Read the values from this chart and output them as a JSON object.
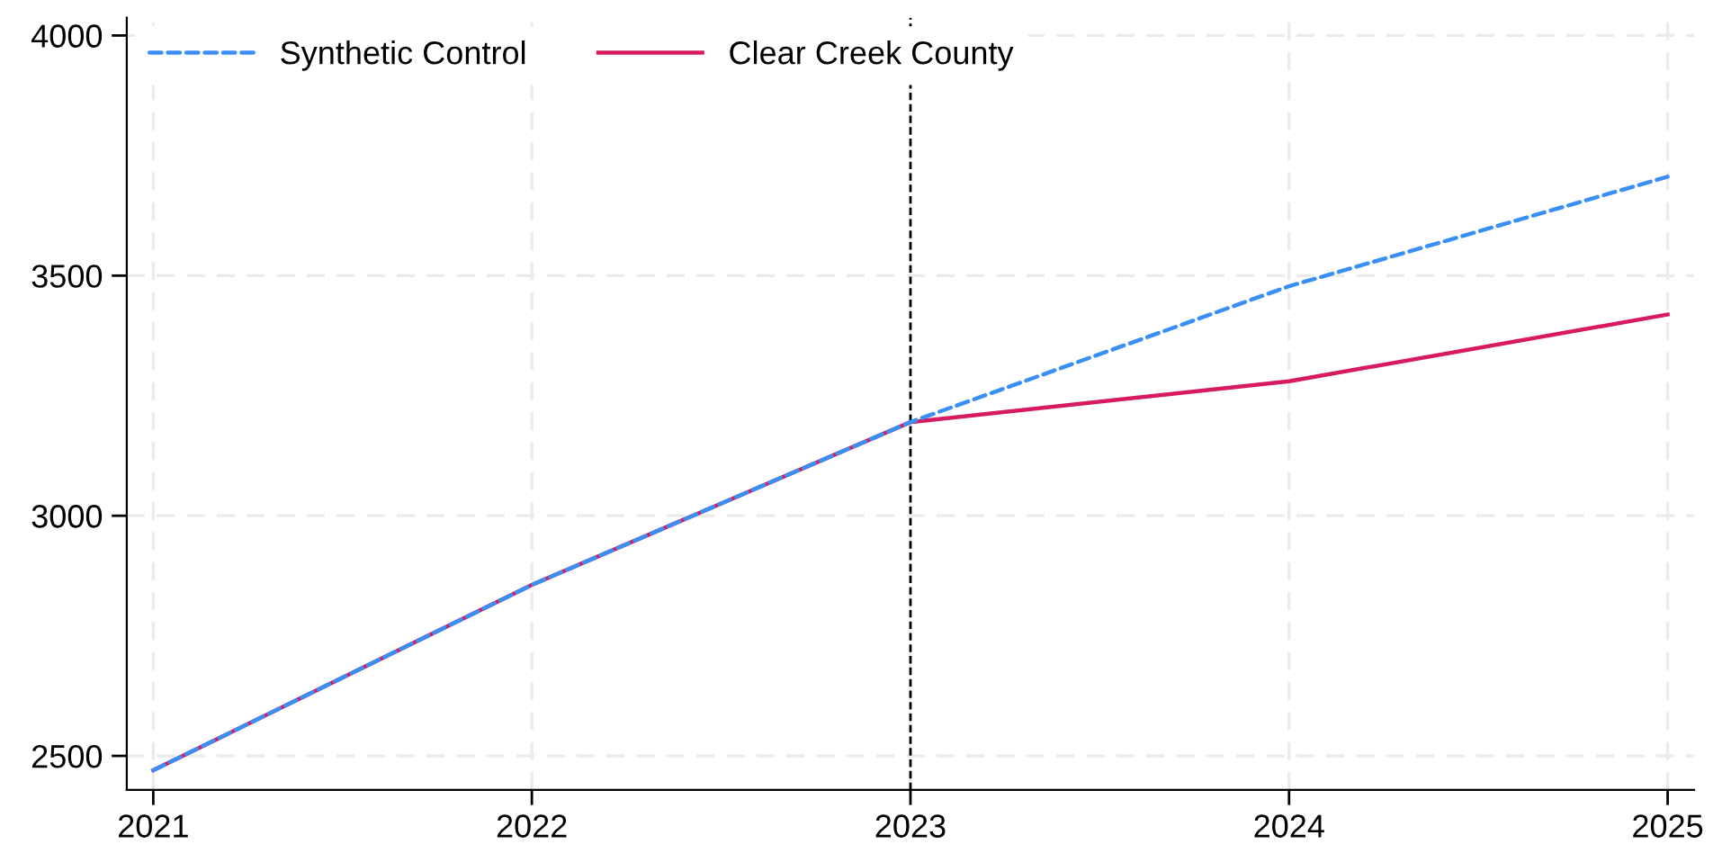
{
  "chart_data": {
    "type": "line",
    "x": [
      2021,
      2022,
      2023,
      2024,
      2025
    ],
    "series": [
      {
        "name": "Synthetic Control",
        "color": "#3a8ff5",
        "line_style": "dashed",
        "values": [
          2470,
          2856,
          3195,
          3478,
          3706
        ]
      },
      {
        "name": "Clear Creek County",
        "color": "#d81b60",
        "line_style": "solid",
        "values": [
          2470,
          2856,
          3195,
          3280,
          3419
        ]
      }
    ],
    "xlim": [
      2020.93,
      2025.07
    ],
    "xticks": [
      2021,
      2022,
      2023,
      2024,
      2025
    ],
    "ylim": [
      2429,
      4037
    ],
    "yticks": [
      2500,
      3000,
      3500,
      4000
    ],
    "ref_lines": [
      {
        "axis": "x",
        "value": 2023,
        "label": null,
        "color": "#000000",
        "line_style": "dashed"
      }
    ],
    "grid": true,
    "legend": "top left",
    "marker": "none"
  }
}
